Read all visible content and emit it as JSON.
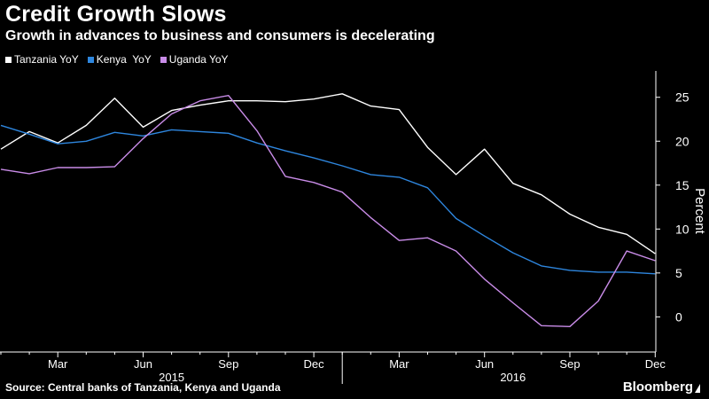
{
  "header": {
    "title": "Credit Growth Slows",
    "subtitle": "Growth in advances to business and consumers is decelerating"
  },
  "footer": {
    "source": "Source: Central banks of Tanzania, Kenya and Uganda",
    "brand": "Bloomberg"
  },
  "colors": {
    "background": "#000000",
    "tanzania": "#ffffff",
    "kenya": "#2e86de",
    "uganda": "#c98ce8",
    "axis": "#ffffff"
  },
  "chart_data": {
    "type": "line",
    "title": "Credit Growth Slows",
    "subtitle": "Growth in advances to business and consumers is decelerating",
    "ylabel": "Percent",
    "xlabel": "",
    "ylim": [
      -4,
      28
    ],
    "yticks": [
      0,
      5,
      10,
      15,
      20,
      25
    ],
    "grid": false,
    "legend_position": "top-left",
    "x_tick_labels": [
      "Mar",
      "Jun",
      "Sep",
      "Dec",
      "Mar",
      "Jun",
      "Sep",
      "Dec"
    ],
    "x_tick_months": [
      "2015-03",
      "2015-06",
      "2015-09",
      "2015-12",
      "2016-03",
      "2016-06",
      "2016-09",
      "2016-12"
    ],
    "x_year_labels": [
      {
        "label": "2015",
        "month": "2015-07"
      },
      {
        "label": "2016",
        "month": "2016-07"
      }
    ],
    "x": [
      "2015-01",
      "2015-02",
      "2015-03",
      "2015-04",
      "2015-05",
      "2015-06",
      "2015-07",
      "2015-08",
      "2015-09",
      "2015-10",
      "2015-11",
      "2015-12",
      "2016-01",
      "2016-02",
      "2016-03",
      "2016-04",
      "2016-05",
      "2016-06",
      "2016-07",
      "2016-08",
      "2016-09",
      "2016-10",
      "2016-11",
      "2016-12"
    ],
    "series": [
      {
        "name": "Tanzania YoY",
        "color": "#ffffff",
        "values": [
          19.1,
          21.1,
          19.8,
          21.8,
          24.9,
          21.6,
          23.5,
          24.1,
          24.6,
          24.6,
          24.5,
          24.8,
          25.4,
          24.0,
          23.6,
          19.3,
          16.2,
          19.1,
          15.2,
          13.9,
          11.7,
          10.2,
          9.4,
          7.2
        ]
      },
      {
        "name": "Kenya  YoY",
        "color": "#2e86de",
        "values": [
          21.8,
          20.8,
          19.7,
          20.0,
          21.0,
          20.6,
          21.3,
          21.1,
          20.9,
          19.8,
          18.9,
          18.1,
          17.2,
          16.2,
          15.9,
          14.7,
          11.2,
          9.2,
          7.3,
          5.8,
          5.3,
          5.1,
          5.1,
          4.9
        ]
      },
      {
        "name": "Uganda YoY",
        "color": "#c98ce8",
        "values": [
          16.8,
          16.3,
          17.0,
          17.0,
          17.1,
          20.3,
          23.1,
          24.6,
          25.2,
          21.2,
          16.0,
          15.3,
          14.2,
          11.3,
          8.7,
          9.0,
          7.5,
          4.3,
          1.6,
          -1.0,
          -1.1,
          1.8,
          7.5,
          6.4
        ]
      }
    ]
  }
}
